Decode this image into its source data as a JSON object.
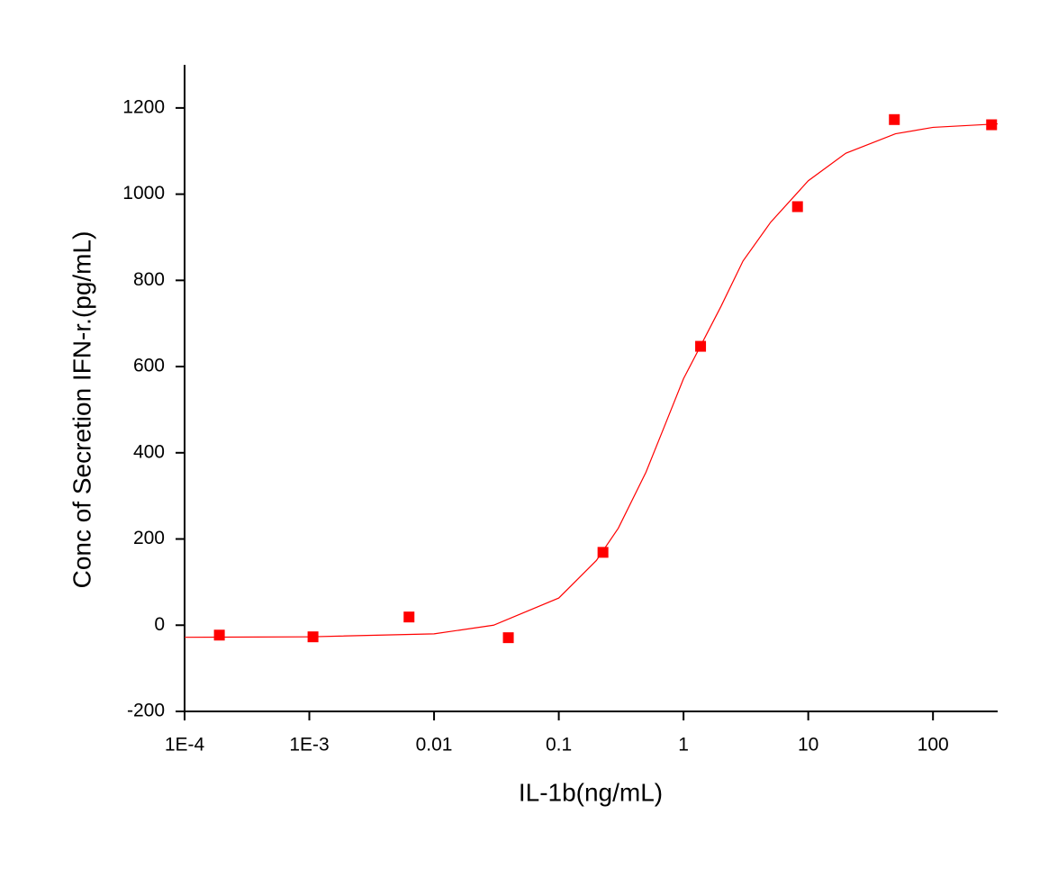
{
  "chart_data": {
    "type": "scatter",
    "x_label": "IL-1b(ng/mL)",
    "y_label": "Conc of Secretion IFN-r.(pg/mL)",
    "xscale": "log",
    "xlim": [
      0.0001,
      330
    ],
    "ylim": [
      -200,
      1300
    ],
    "xticks": [
      {
        "value": 0.0001,
        "label": "1E-4"
      },
      {
        "value": 0.001,
        "label": "1E-3"
      },
      0.01,
      0.1,
      1,
      10,
      100
    ],
    "yticks": [
      -200,
      0,
      200,
      400,
      600,
      800,
      1000,
      1200
    ],
    "series": [
      {
        "type": "scatter",
        "marker": "square",
        "color": "#ff0000",
        "x": [
          0.00019,
          0.00107,
          0.0063,
          0.0394,
          0.226,
          1.37,
          8.2,
          49,
          295
        ],
        "values": [
          -23,
          -27,
          19,
          -29,
          169,
          647,
          971,
          1173,
          1161
        ]
      },
      {
        "type": "line",
        "color": "#ff0000",
        "x": [
          0.0001,
          0.001,
          0.01,
          0.03,
          0.1,
          0.2,
          0.3,
          0.5,
          0.7,
          1,
          1.5,
          2,
          3,
          5,
          10,
          20,
          50,
          100,
          330
        ],
        "values": [
          -28,
          -27,
          -20,
          0,
          63,
          150,
          225,
          355,
          460,
          572,
          670,
          740,
          845,
          935,
          1031,
          1095,
          1140,
          1155,
          1163
        ]
      }
    ]
  }
}
